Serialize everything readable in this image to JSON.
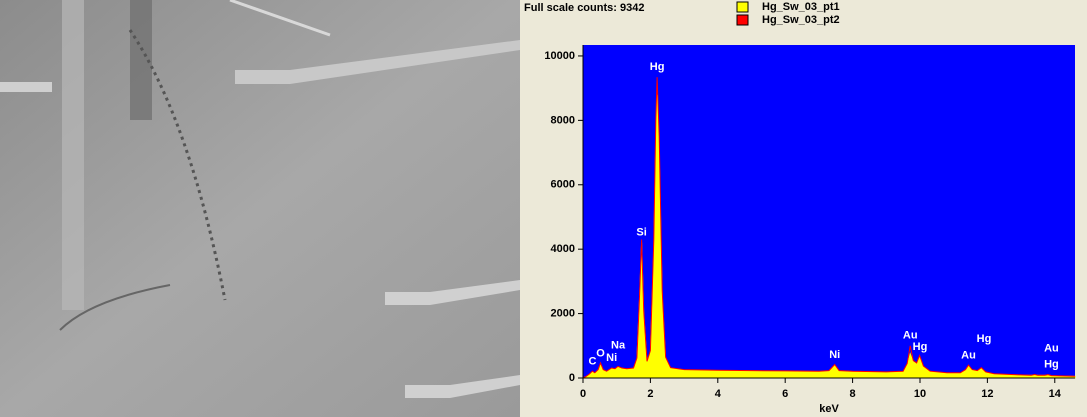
{
  "chart_data": {
    "type": "area",
    "title": "Full scale counts: 9342",
    "xlabel": "keV",
    "x": [
      0,
      0.1,
      0.2,
      0.28,
      0.35,
      0.45,
      0.52,
      0.6,
      0.7,
      0.85,
      0.95,
      1.04,
      1.15,
      1.3,
      1.5,
      1.6,
      1.68,
      1.74,
      1.8,
      1.9,
      2.0,
      2.1,
      2.16,
      2.2,
      2.26,
      2.35,
      2.45,
      2.6,
      3,
      4,
      5,
      6,
      7,
      7.3,
      7.47,
      7.6,
      8,
      9,
      9.5,
      9.62,
      9.71,
      9.8,
      9.9,
      9.99,
      10.1,
      10.3,
      10.8,
      11.2,
      11.35,
      11.44,
      11.55,
      11.7,
      11.82,
      11.95,
      12.2,
      13,
      13.3,
      13.4,
      13.5,
      13.7,
      13.8,
      13.9,
      14.2,
      14.6
    ],
    "series": [
      {
        "name": "Hg_Sw_03_pt1",
        "color": "#ffff00",
        "values": [
          0,
          50,
          120,
          200,
          150,
          250,
          450,
          250,
          200,
          300,
          280,
          350,
          300,
          280,
          300,
          600,
          2500,
          4200,
          2000,
          500,
          800,
          4000,
          7500,
          8800,
          7000,
          2500,
          600,
          300,
          250,
          230,
          220,
          210,
          200,
          220,
          400,
          220,
          200,
          180,
          200,
          400,
          750,
          500,
          450,
          650,
          350,
          200,
          150,
          150,
          250,
          380,
          250,
          220,
          300,
          180,
          120,
          90,
          80,
          100,
          80,
          80,
          100,
          70,
          60,
          50
        ]
      },
      {
        "name": "Hg_Sw_03_pt2",
        "color": "#ff0000",
        "values": [
          0,
          55,
          130,
          210,
          160,
          260,
          470,
          260,
          210,
          310,
          290,
          360,
          310,
          290,
          310,
          620,
          2600,
          4300,
          2100,
          520,
          850,
          4300,
          8000,
          9342,
          7500,
          2700,
          650,
          320,
          260,
          240,
          230,
          220,
          210,
          230,
          420,
          230,
          210,
          190,
          210,
          450,
          1000,
          550,
          470,
          700,
          370,
          210,
          160,
          160,
          260,
          400,
          260,
          230,
          320,
          190,
          130,
          95,
          85,
          110,
          85,
          85,
          105,
          75,
          65,
          55
        ]
      }
    ],
    "xlim": [
      0,
      14.6
    ],
    "ylim": [
      0,
      10340
    ],
    "xticks": [
      0,
      2,
      4,
      6,
      8,
      10,
      12,
      14
    ],
    "yticks": [
      0,
      2000,
      4000,
      6000,
      8000,
      10000
    ],
    "annotations": [
      {
        "text": "C",
        "x": 0.28,
        "y": 200
      },
      {
        "text": "O",
        "x": 0.52,
        "y": 450
      },
      {
        "text": "Ni",
        "x": 0.85,
        "y": 300
      },
      {
        "text": "Na",
        "x": 1.04,
        "y": 700
      },
      {
        "text": "Si",
        "x": 1.74,
        "y": 4200
      },
      {
        "text": "Hg",
        "x": 2.2,
        "y": 9342
      },
      {
        "text": "Ni",
        "x": 7.47,
        "y": 400
      },
      {
        "text": "Au",
        "x": 9.71,
        "y": 1000
      },
      {
        "text": "Hg",
        "x": 10.0,
        "y": 650
      },
      {
        "text": "Au",
        "x": 11.44,
        "y": 380
      },
      {
        "text": "Hg",
        "x": 11.9,
        "y": 900
      },
      {
        "text": "Au",
        "x": 13.9,
        "y": 600
      },
      {
        "text": "Hg",
        "x": 13.9,
        "y": 100
      }
    ]
  }
}
